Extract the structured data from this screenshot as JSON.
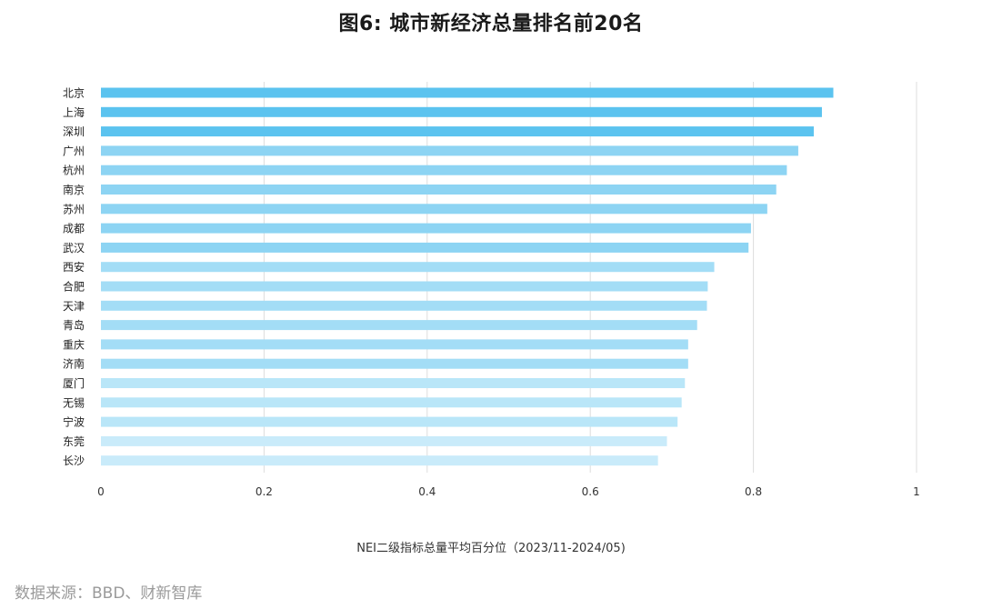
{
  "chart_data": {
    "type": "bar",
    "orientation": "horizontal",
    "title": "图6: 城市新经济总量排名前20名",
    "xlabel": "NEI二级指标总量平均百分位（2023/11-2024/05)",
    "ylabel": "",
    "xlim": [
      0,
      1
    ],
    "xticks": [
      0,
      0.2,
      0.4,
      0.6,
      0.8,
      1
    ],
    "xtick_labels": [
      "0",
      "0.2",
      "0.4",
      "0.6",
      "0.8",
      "1"
    ],
    "grid": "vertical",
    "categories": [
      "北京",
      "上海",
      "深圳",
      "广州",
      "杭州",
      "南京",
      "苏州",
      "成都",
      "武汉",
      "西安",
      "合肥",
      "天津",
      "青岛",
      "重庆",
      "济南",
      "厦门",
      "无锡",
      "宁波",
      "东莞",
      "长沙"
    ],
    "values": [
      0.898,
      0.884,
      0.874,
      0.855,
      0.841,
      0.828,
      0.817,
      0.797,
      0.794,
      0.752,
      0.744,
      0.743,
      0.731,
      0.72,
      0.72,
      0.716,
      0.712,
      0.707,
      0.694,
      0.683
    ],
    "colors": [
      "#5bc3ef",
      "#5bc3ef",
      "#5bc3ef",
      "#8dd4f3",
      "#8dd4f3",
      "#8dd4f3",
      "#8dd4f3",
      "#8dd4f3",
      "#8dd4f3",
      "#a3ddf6",
      "#a3ddf6",
      "#a3ddf6",
      "#a3ddf6",
      "#a3ddf6",
      "#a3ddf6",
      "#b9e6f8",
      "#b9e6f8",
      "#b9e6f8",
      "#c9ebfa",
      "#c9ebfa"
    ],
    "gridline_color": "#dddddd"
  },
  "source": "数据来源：BBD、财新智库"
}
